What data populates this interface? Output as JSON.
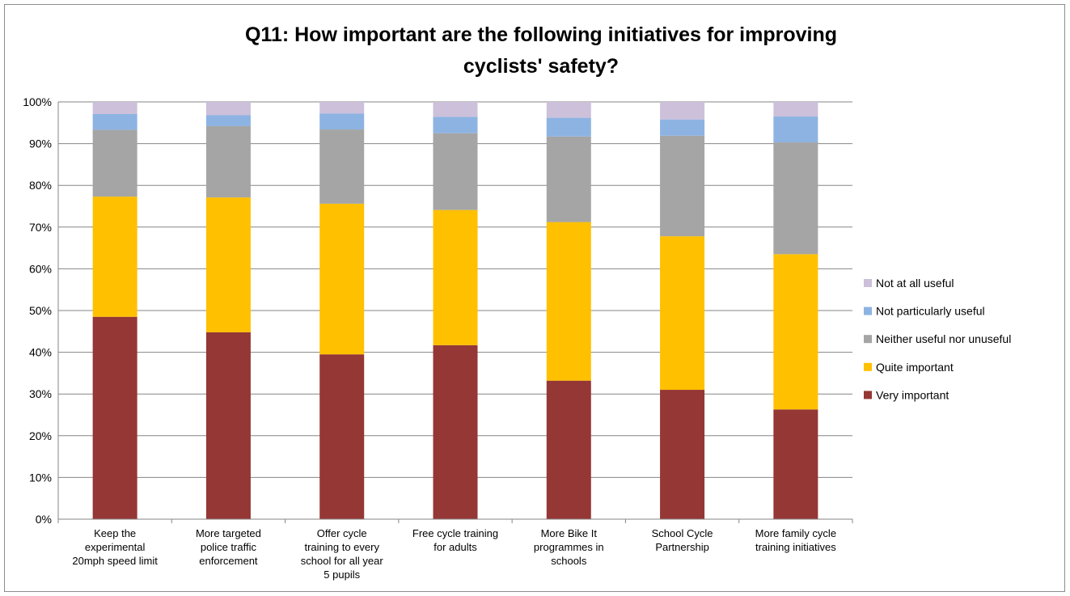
{
  "chart_data": {
    "type": "bar",
    "stacked": true,
    "title_lines": [
      "Q11: How important are the following initiatives for improving",
      "cyclists' safety?"
    ],
    "categories": [
      [
        "Keep the",
        "experimental",
        "20mph speed limit"
      ],
      [
        "More targeted",
        "police traffic",
        "enforcement"
      ],
      [
        "Offer cycle",
        "training to every",
        "school for all year",
        "5 pupils"
      ],
      [
        "Free cycle training",
        "for adults"
      ],
      [
        "More Bike It",
        "programmes in",
        "schools"
      ],
      [
        "School Cycle",
        "Partnership"
      ],
      [
        "More family cycle",
        "training initiatives"
      ]
    ],
    "series": [
      {
        "name": "Very important",
        "color": "#953735",
        "values": [
          48.5,
          44.8,
          39.5,
          41.7,
          33.2,
          31.0,
          26.3
        ]
      },
      {
        "name": "Quite important",
        "color": "#FFC000",
        "values": [
          28.8,
          32.3,
          36.1,
          32.4,
          38.0,
          36.8,
          37.2
        ]
      },
      {
        "name": "Neither useful nor unuseful",
        "color": "#A5A5A5",
        "values": [
          16.0,
          17.1,
          17.8,
          18.4,
          20.5,
          24.1,
          26.8
        ]
      },
      {
        "name": "Not particularly useful",
        "color": "#8DB3E2",
        "values": [
          3.8,
          2.6,
          3.8,
          3.9,
          4.5,
          3.9,
          6.2
        ]
      },
      {
        "name": "Not at all useful",
        "color": "#CCC0DA",
        "values": [
          2.9,
          3.2,
          2.8,
          3.6,
          3.8,
          4.2,
          3.5
        ]
      }
    ],
    "y_ticks": [
      "0%",
      "10%",
      "20%",
      "30%",
      "40%",
      "50%",
      "60%",
      "70%",
      "80%",
      "90%",
      "100%"
    ],
    "ylim": [
      0,
      100
    ],
    "grid": true,
    "legend_position": "right"
  }
}
